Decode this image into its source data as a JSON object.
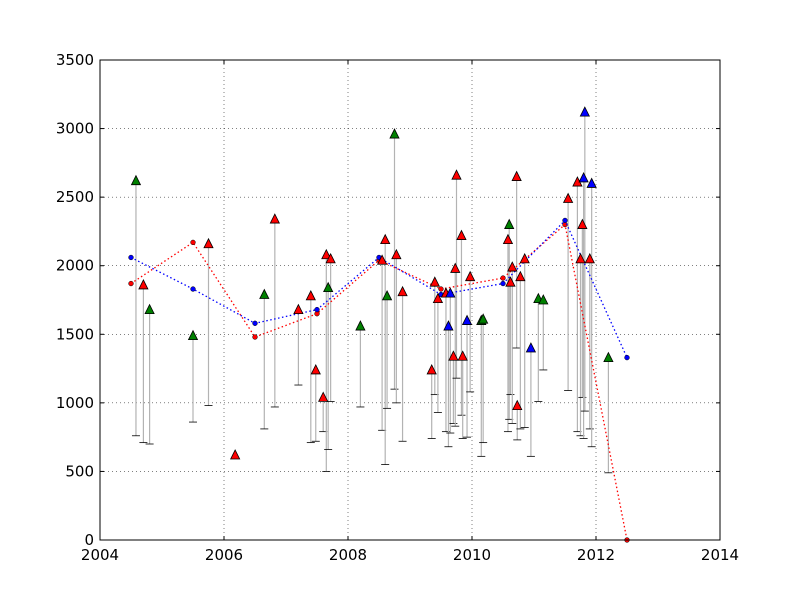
{
  "chart_data": {
    "type": "scatter",
    "xlim": [
      2004,
      2014
    ],
    "ylim": [
      0,
      3500
    ],
    "x_ticks": [
      2004,
      2006,
      2008,
      2010,
      2012,
      2014
    ],
    "y_ticks": [
      0,
      500,
      1000,
      1500,
      2000,
      2500,
      3000,
      3500
    ],
    "x_tick_labels": [
      "2004",
      "2006",
      "2008",
      "2010",
      "2012",
      "2014"
    ],
    "y_tick_labels": [
      "0",
      "500",
      "1000",
      "1500",
      "2000",
      "2500",
      "3000",
      "3500"
    ],
    "grid": true,
    "colors": {
      "red": "#ff0000",
      "green": "#008000",
      "blue": "#0000ff",
      "stem": "#b3b3b3"
    },
    "lines": [
      {
        "color": "red",
        "style": "dotted",
        "points": [
          [
            2004.5,
            1870
          ],
          [
            2005.5,
            2170
          ],
          [
            2006.5,
            1480
          ],
          [
            2007.5,
            1650
          ],
          [
            2008.5,
            2040
          ],
          [
            2009.5,
            1830
          ],
          [
            2010.5,
            1910
          ],
          [
            2011.5,
            2300
          ],
          [
            2012.5,
            0
          ]
        ]
      },
      {
        "color": "blue",
        "style": "dotted",
        "points": [
          [
            2004.5,
            2060
          ],
          [
            2005.5,
            1830
          ],
          [
            2006.5,
            1580
          ],
          [
            2007.5,
            1680
          ],
          [
            2008.5,
            2060
          ],
          [
            2009.5,
            1790
          ],
          [
            2010.5,
            1870
          ],
          [
            2011.5,
            2330
          ],
          [
            2012.5,
            1330
          ]
        ]
      }
    ],
    "markers": [
      {
        "x": 2004.58,
        "y": 2620,
        "color": "green",
        "low": 760
      },
      {
        "x": 2004.7,
        "y": 1860,
        "color": "red",
        "low": 710
      },
      {
        "x": 2004.8,
        "y": 1680,
        "color": "green",
        "low": 700
      },
      {
        "x": 2005.5,
        "y": 1490,
        "color": "green",
        "low": 860
      },
      {
        "x": 2005.75,
        "y": 2160,
        "color": "red",
        "low": 980
      },
      {
        "x": 2006.18,
        "y": 620,
        "color": "red"
      },
      {
        "x": 2006.65,
        "y": 1790,
        "color": "green",
        "low": 810
      },
      {
        "x": 2006.82,
        "y": 2340,
        "color": "red",
        "low": 970
      },
      {
        "x": 2007.2,
        "y": 1680,
        "color": "red",
        "low": 1130
      },
      {
        "x": 2007.4,
        "y": 1780,
        "color": "red",
        "low": 710
      },
      {
        "x": 2007.48,
        "y": 1240,
        "color": "red",
        "low": 720
      },
      {
        "x": 2007.6,
        "y": 1040,
        "color": "red",
        "low": 790
      },
      {
        "x": 2007.65,
        "y": 2080,
        "color": "red",
        "low": 500
      },
      {
        "x": 2007.68,
        "y": 1840,
        "color": "green",
        "low": 660
      },
      {
        "x": 2007.72,
        "y": 2050,
        "color": "red",
        "low": 1010
      },
      {
        "x": 2008.2,
        "y": 1560,
        "color": "green",
        "low": 970
      },
      {
        "x": 2008.55,
        "y": 2040,
        "color": "red",
        "low": 800
      },
      {
        "x": 2008.6,
        "y": 2190,
        "color": "red",
        "low": 550
      },
      {
        "x": 2008.63,
        "y": 1780,
        "color": "green",
        "low": 960
      },
      {
        "x": 2008.75,
        "y": 2960,
        "color": "green",
        "low": 1100
      },
      {
        "x": 2008.78,
        "y": 2080,
        "color": "red",
        "low": 1000
      },
      {
        "x": 2008.88,
        "y": 1810,
        "color": "red",
        "low": 720
      },
      {
        "x": 2009.35,
        "y": 1240,
        "color": "red",
        "low": 740
      },
      {
        "x": 2009.4,
        "y": 1880,
        "color": "red",
        "low": 1060
      },
      {
        "x": 2009.45,
        "y": 1760,
        "color": "red",
        "low": 930
      },
      {
        "x": 2009.58,
        "y": 1800,
        "color": "red",
        "low": 790
      },
      {
        "x": 2009.62,
        "y": 1560,
        "color": "blue",
        "low": 680
      },
      {
        "x": 2009.65,
        "y": 1800,
        "color": "blue",
        "low": 780
      },
      {
        "x": 2009.7,
        "y": 1340,
        "color": "red",
        "low": 850
      },
      {
        "x": 2009.73,
        "y": 1980,
        "color": "red",
        "low": 830
      },
      {
        "x": 2009.75,
        "y": 2660,
        "color": "red",
        "low": 1180
      },
      {
        "x": 2009.83,
        "y": 2220,
        "color": "red",
        "low": 910
      },
      {
        "x": 2009.85,
        "y": 1340,
        "color": "red",
        "low": 740
      },
      {
        "x": 2009.92,
        "y": 1600,
        "color": "blue",
        "low": 750
      },
      {
        "x": 2009.97,
        "y": 1920,
        "color": "red",
        "low": 1080
      },
      {
        "x": 2010.15,
        "y": 1600,
        "color": "green",
        "low": 610
      },
      {
        "x": 2010.18,
        "y": 1610,
        "color": "green",
        "low": 710
      },
      {
        "x": 2010.58,
        "y": 2190,
        "color": "red",
        "low": 790
      },
      {
        "x": 2010.6,
        "y": 2300,
        "color": "green",
        "low": 880
      },
      {
        "x": 2010.62,
        "y": 1880,
        "color": "red",
        "low": 1060
      },
      {
        "x": 2010.65,
        "y": 1990,
        "color": "red",
        "low": 850
      },
      {
        "x": 2010.72,
        "y": 2650,
        "color": "red",
        "low": 1400
      },
      {
        "x": 2010.73,
        "y": 980,
        "color": "red",
        "low": 730
      },
      {
        "x": 2010.78,
        "y": 1920,
        "color": "red",
        "low": 810
      },
      {
        "x": 2010.85,
        "y": 2050,
        "color": "red",
        "low": 820
      },
      {
        "x": 2010.95,
        "y": 1400,
        "color": "blue",
        "low": 610
      },
      {
        "x": 2011.07,
        "y": 1760,
        "color": "green",
        "low": 1010
      },
      {
        "x": 2011.15,
        "y": 1750,
        "color": "green",
        "low": 1240
      },
      {
        "x": 2011.55,
        "y": 2490,
        "color": "red",
        "low": 1090
      },
      {
        "x": 2011.7,
        "y": 2610,
        "color": "red",
        "low": 790
      },
      {
        "x": 2011.75,
        "y": 2050,
        "color": "red",
        "low": 760
      },
      {
        "x": 2011.78,
        "y": 2300,
        "color": "red",
        "low": 1040
      },
      {
        "x": 2011.8,
        "y": 2640,
        "color": "blue",
        "low": 740
      },
      {
        "x": 2011.82,
        "y": 3120,
        "color": "blue",
        "low": 940
      },
      {
        "x": 2011.9,
        "y": 2050,
        "color": "red",
        "low": 810
      },
      {
        "x": 2011.93,
        "y": 2600,
        "color": "blue",
        "low": 680
      },
      {
        "x": 2012.2,
        "y": 1330,
        "color": "green",
        "low": 490
      }
    ]
  }
}
